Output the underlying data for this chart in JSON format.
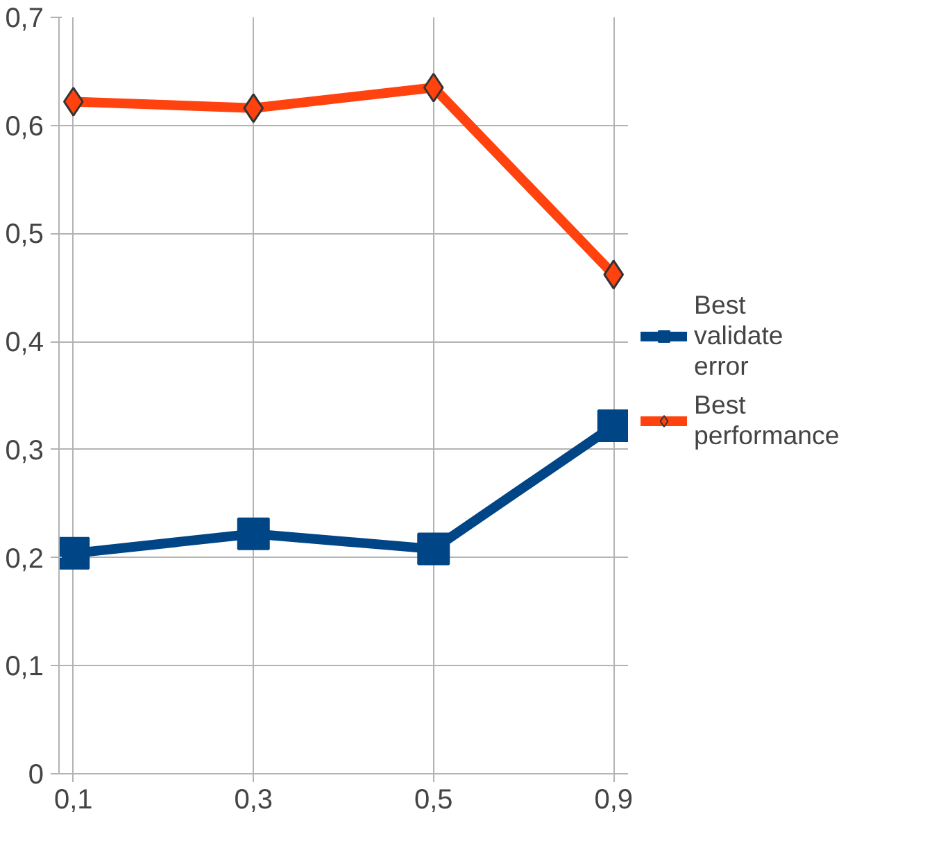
{
  "chart_data": {
    "type": "line",
    "categories": [
      "0,1",
      "0,3",
      "0,5",
      "0,9"
    ],
    "series": [
      {
        "name": "Best validate error",
        "color": "#004586",
        "marker": "square",
        "values": [
          0.204,
          0.222,
          0.208,
          0.322
        ]
      },
      {
        "name": "Best performance",
        "color": "#ff420e",
        "marker": "diamond",
        "values": [
          0.622,
          0.616,
          0.635,
          0.462
        ]
      }
    ],
    "ylim": [
      0,
      0.7
    ],
    "yticks": [
      {
        "value": 0,
        "label": "0"
      },
      {
        "value": 0.1,
        "label": "0,1"
      },
      {
        "value": 0.2,
        "label": "0,2"
      },
      {
        "value": 0.3,
        "label": "0,3"
      },
      {
        "value": 0.4,
        "label": "0,4"
      },
      {
        "value": 0.5,
        "label": "0,5"
      },
      {
        "value": 0.6,
        "label": "0,6"
      },
      {
        "value": 0.7,
        "label": "0,7"
      }
    ],
    "grid": true,
    "legend": "right"
  }
}
